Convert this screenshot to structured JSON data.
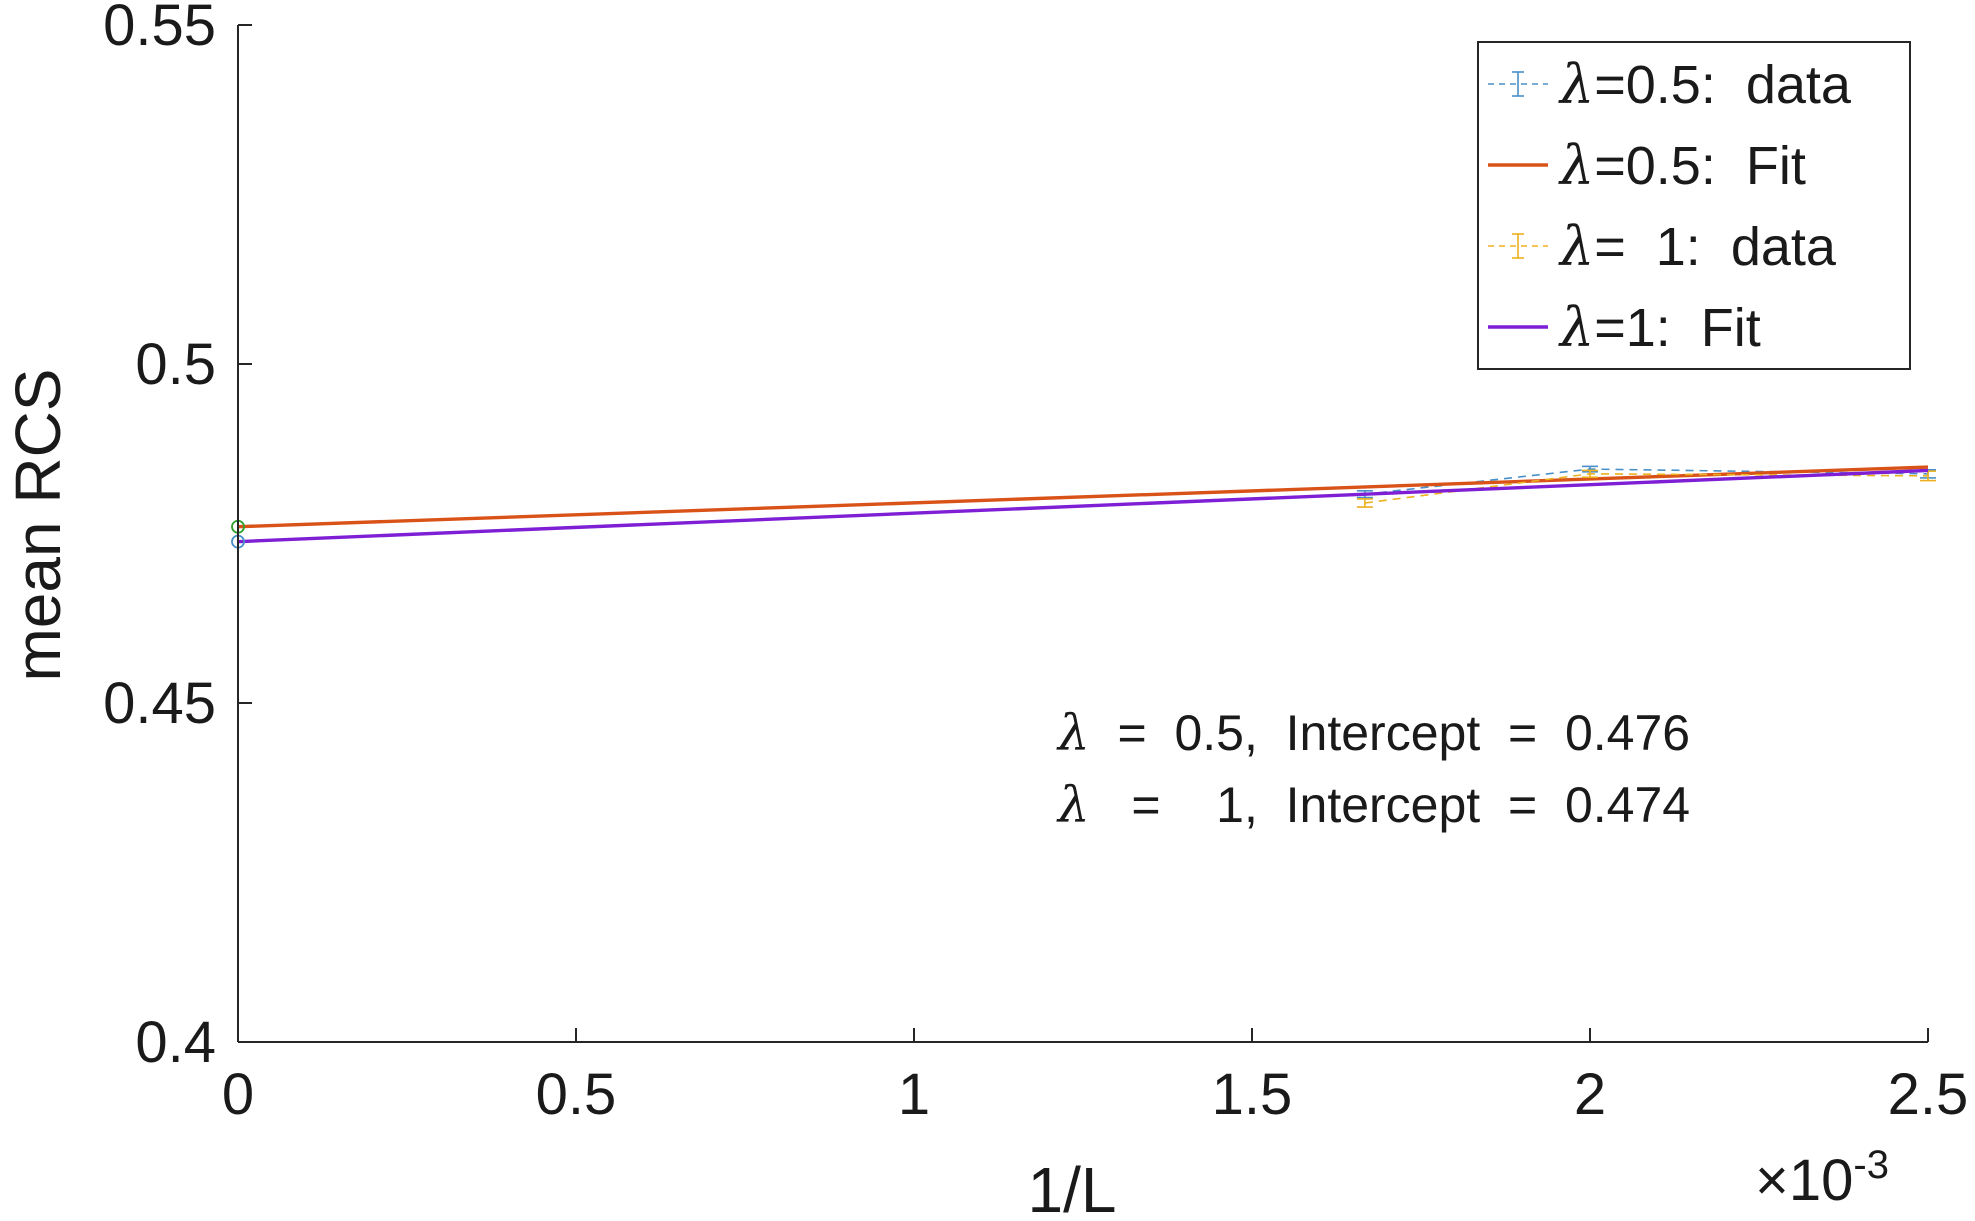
{
  "chart_data": {
    "type": "line",
    "xlabel": "1/L",
    "ylabel": "mean RCS",
    "x_multiplier": "×10",
    "x_multiplier_exp": "-3",
    "xlim": [
      0,
      2.5
    ],
    "ylim": [
      0.4,
      0.55
    ],
    "x_ticks": [
      0,
      0.5,
      1,
      1.5,
      2,
      2.5
    ],
    "x_tick_labels": [
      "0",
      "0.5",
      "1",
      "1.5",
      "2",
      "2.5"
    ],
    "y_ticks": [
      0.4,
      0.45,
      0.5,
      0.55
    ],
    "y_tick_labels": [
      "0.4",
      "0.45",
      "0.5",
      "0.55"
    ],
    "grid": false,
    "legend_position": "top-right",
    "series": [
      {
        "name": "λ=0.5: data",
        "style": "dashed-errorbar",
        "color": "#4a90c8",
        "x": [
          1.667,
          2.0,
          2.5
        ],
        "y": [
          0.4808,
          0.4845,
          0.4838
        ],
        "err": [
          0.0005,
          0.0004,
          0.0006
        ]
      },
      {
        "name": "λ=0.5: Fit",
        "style": "solid",
        "color": "#d95319",
        "x": [
          0,
          2.5
        ],
        "y": [
          0.476,
          0.4848
        ]
      },
      {
        "name": "λ= 1: data",
        "style": "dashed-errorbar",
        "color": "#edb120",
        "x": [
          1.667,
          2.0,
          2.5
        ],
        "y": [
          0.4795,
          0.4838,
          0.4835
        ],
        "err": [
          0.0006,
          0.0005,
          0.0007
        ]
      },
      {
        "name": "λ=1: Fit",
        "style": "solid",
        "color": "#7e1fd6",
        "x": [
          0,
          2.5
        ],
        "y": [
          0.4738,
          0.4843
        ]
      }
    ],
    "intercept_markers": [
      {
        "x": 0,
        "y": 0.476,
        "color": "#2ca02c"
      },
      {
        "x": 0,
        "y": 0.4738,
        "color": "#4a90c8"
      }
    ],
    "legend": [
      {
        "lam": "λ",
        "rest": "=0.5:  data"
      },
      {
        "lam": "λ",
        "rest": "=0.5:  Fit"
      },
      {
        "lam": "λ",
        "rest": "=  1:  data"
      },
      {
        "lam": "λ",
        "rest": "=1:  Fit"
      }
    ],
    "annotations": [
      {
        "lam": "λ",
        "rest": "  =  0.5,  Intercept  =  0.476"
      },
      {
        "lam": "λ",
        "rest": "   =    1,  Intercept  =  0.474"
      }
    ]
  }
}
